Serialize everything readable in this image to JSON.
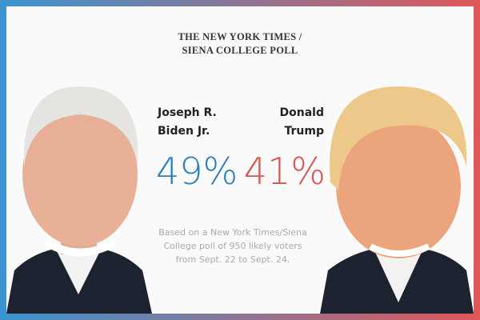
{
  "header": {
    "title_lines": [
      "THE NEW YORK TIMES /",
      "SIENA COLLEGE POLL"
    ]
  },
  "candidates": [
    {
      "name_lines": [
        "Joseph R.",
        "Biden Jr."
      ],
      "percent": "49%"
    },
    {
      "name_lines": [
        "Donald",
        "Trump"
      ],
      "percent": "41%"
    }
  ],
  "note_lines": [
    "Based on a New York Times/Siena",
    "College poll of 950 likely voters",
    "from Sept. 22 to Sept. 24."
  ]
}
